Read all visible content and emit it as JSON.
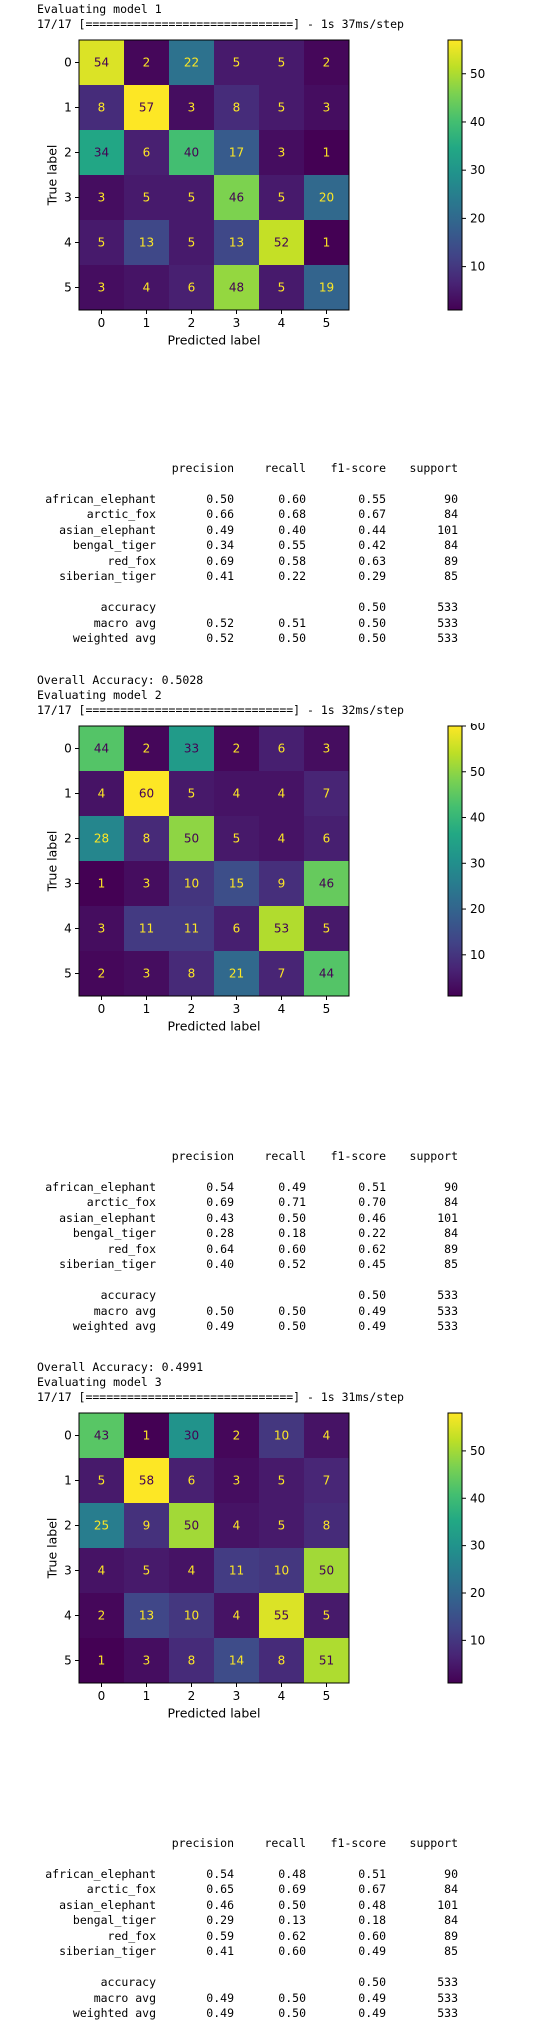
{
  "classes": [
    "african_elephant",
    "arctic_fox",
    "asian_elephant",
    "bengal_tiger",
    "red_fox",
    "siberian_tiger"
  ],
  "report_headers": [
    "precision",
    "recall",
    "f1-score",
    "support"
  ],
  "avg_labels": {
    "accuracy": "accuracy",
    "macro": "macro avg",
    "weighted": "weighted avg"
  },
  "models": [
    {
      "eval_line": "Evaluating model 1",
      "progress_line": "17/17 [==============================] - 1s 37ms/step",
      "chart_data": {
        "type": "heatmap",
        "xlabel": "Predicted label",
        "ylabel": "True label",
        "x_ticks": [
          "0",
          "1",
          "2",
          "3",
          "4",
          "5"
        ],
        "y_ticks": [
          "0",
          "1",
          "2",
          "3",
          "4",
          "5"
        ],
        "colorbar_ticks": [
          10,
          20,
          30,
          40,
          50
        ],
        "colorbar_range": [
          1,
          57
        ],
        "colormap": "viridis",
        "matrix": [
          [
            54,
            2,
            22,
            5,
            5,
            2
          ],
          [
            8,
            57,
            3,
            8,
            5,
            3
          ],
          [
            34,
            6,
            40,
            17,
            3,
            1
          ],
          [
            3,
            5,
            5,
            46,
            5,
            20
          ],
          [
            5,
            13,
            5,
            13,
            52,
            1
          ],
          [
            3,
            4,
            6,
            48,
            5,
            19
          ]
        ]
      },
      "report_rows": [
        [
          "0.50",
          "0.60",
          "0.55",
          "90"
        ],
        [
          "0.66",
          "0.68",
          "0.67",
          "84"
        ],
        [
          "0.49",
          "0.40",
          "0.44",
          "101"
        ],
        [
          "0.34",
          "0.55",
          "0.42",
          "84"
        ],
        [
          "0.69",
          "0.58",
          "0.63",
          "89"
        ],
        [
          "0.41",
          "0.22",
          "0.29",
          "85"
        ]
      ],
      "accuracy_row": [
        "",
        "",
        "0.50",
        "533"
      ],
      "macro_row": [
        "0.52",
        "0.51",
        "0.50",
        "533"
      ],
      "weighted_row": [
        "0.52",
        "0.50",
        "0.50",
        "533"
      ],
      "overall": "Overall Accuracy: 0.5028"
    },
    {
      "eval_line": "Evaluating model 2",
      "progress_line": "17/17 [==============================] - 1s 32ms/step",
      "chart_data": {
        "type": "heatmap",
        "xlabel": "Predicted label",
        "ylabel": "True label",
        "x_ticks": [
          "0",
          "1",
          "2",
          "3",
          "4",
          "5"
        ],
        "y_ticks": [
          "0",
          "1",
          "2",
          "3",
          "4",
          "5"
        ],
        "colorbar_ticks": [
          10,
          20,
          30,
          40,
          50,
          60
        ],
        "colorbar_range": [
          1,
          60
        ],
        "colormap": "viridis",
        "matrix": [
          [
            44,
            2,
            33,
            2,
            6,
            3
          ],
          [
            4,
            60,
            5,
            4,
            4,
            7
          ],
          [
            28,
            8,
            50,
            5,
            4,
            6
          ],
          [
            1,
            3,
            10,
            15,
            9,
            46
          ],
          [
            3,
            11,
            11,
            6,
            53,
            5
          ],
          [
            2,
            3,
            8,
            21,
            7,
            44
          ]
        ]
      },
      "report_rows": [
        [
          "0.54",
          "0.49",
          "0.51",
          "90"
        ],
        [
          "0.69",
          "0.71",
          "0.70",
          "84"
        ],
        [
          "0.43",
          "0.50",
          "0.46",
          "101"
        ],
        [
          "0.28",
          "0.18",
          "0.22",
          "84"
        ],
        [
          "0.64",
          "0.60",
          "0.62",
          "89"
        ],
        [
          "0.40",
          "0.52",
          "0.45",
          "85"
        ]
      ],
      "accuracy_row": [
        "",
        "",
        "0.50",
        "533"
      ],
      "macro_row": [
        "0.50",
        "0.50",
        "0.49",
        "533"
      ],
      "weighted_row": [
        "0.49",
        "0.50",
        "0.49",
        "533"
      ],
      "overall": "Overall Accuracy: 0.4991"
    },
    {
      "eval_line": "Evaluating model 3",
      "progress_line": "17/17 [==============================] - 1s 31ms/step",
      "chart_data": {
        "type": "heatmap",
        "xlabel": "Predicted label",
        "ylabel": "True label",
        "x_ticks": [
          "0",
          "1",
          "2",
          "3",
          "4",
          "5"
        ],
        "y_ticks": [
          "0",
          "1",
          "2",
          "3",
          "4",
          "5"
        ],
        "colorbar_ticks": [
          10,
          20,
          30,
          40,
          50
        ],
        "colorbar_range": [
          1,
          58
        ],
        "colormap": "viridis",
        "matrix": [
          [
            43,
            1,
            30,
            2,
            10,
            4
          ],
          [
            5,
            58,
            6,
            3,
            5,
            7
          ],
          [
            25,
            9,
            50,
            4,
            5,
            8
          ],
          [
            4,
            5,
            4,
            11,
            10,
            50
          ],
          [
            2,
            13,
            10,
            4,
            55,
            5
          ],
          [
            1,
            3,
            8,
            14,
            8,
            51
          ]
        ]
      },
      "report_rows": [
        [
          "0.54",
          "0.48",
          "0.51",
          "90"
        ],
        [
          "0.65",
          "0.69",
          "0.67",
          "84"
        ],
        [
          "0.46",
          "0.50",
          "0.48",
          "101"
        ],
        [
          "0.29",
          "0.13",
          "0.18",
          "84"
        ],
        [
          "0.59",
          "0.62",
          "0.60",
          "89"
        ],
        [
          "0.41",
          "0.60",
          "0.49",
          "85"
        ]
      ],
      "accuracy_row": [
        "",
        "",
        "0.50",
        "533"
      ],
      "macro_row": [
        "0.49",
        "0.50",
        "0.49",
        "533"
      ],
      "weighted_row": [
        "0.49",
        "0.50",
        "0.49",
        "533"
      ]
    }
  ]
}
